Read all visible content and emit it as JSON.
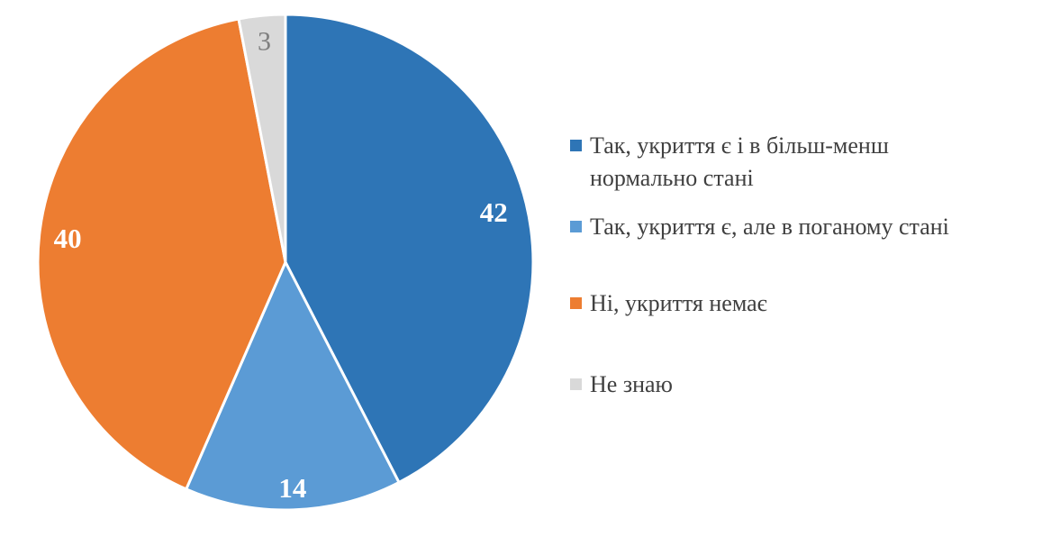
{
  "chart_data": {
    "type": "pie",
    "title": "",
    "categories": [
      "Так, укриття є і в більш-менш нормально стані",
      "Так, укриття є, але в поганому стані",
      "Ні, укриття немає",
      "Не знаю"
    ],
    "values": [
      42,
      14,
      40,
      3
    ],
    "colors": [
      "#2E75B6",
      "#5B9BD5",
      "#ED7D31",
      "#D9D9D9"
    ],
    "label_colors": [
      "#FFFFFF",
      "#FFFFFF",
      "#FFFFFF",
      "#7F7F7F"
    ],
    "label_bold": [
      true,
      true,
      true,
      false
    ],
    "slice_border_color": "#FFFFFF",
    "start_angle_deg": 0,
    "direction": "clockwise",
    "legend_position": "right",
    "background": "#FFFFFF",
    "legend_text_color": "#404040"
  },
  "legend": {
    "items": [
      {
        "color": "#2E75B6",
        "lines": [
          "Так, укриття є і в більш-менш",
          "нормально стані"
        ]
      },
      {
        "color": "#5B9BD5",
        "lines": [
          "Так, укриття є, але в поганому стані"
        ]
      },
      {
        "color": "#ED7D31",
        "lines": [
          "Ні, укриття немає"
        ]
      },
      {
        "color": "#D9D9D9",
        "lines": [
          "Не знаю"
        ]
      }
    ]
  }
}
